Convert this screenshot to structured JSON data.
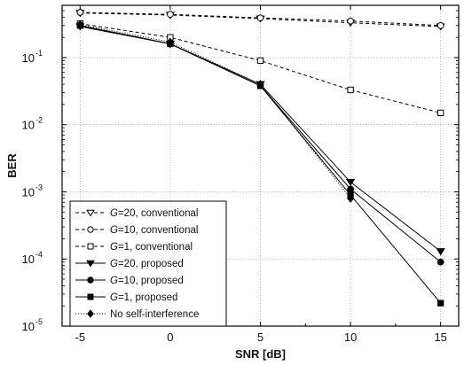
{
  "chart_data": {
    "type": "line",
    "title": "",
    "xlabel": "SNR [dB]",
    "ylabel": "BER",
    "xscale": "linear",
    "yscale": "log",
    "xlim": [
      -6,
      16
    ],
    "ylim": [
      1e-05,
      0.6
    ],
    "x": [
      -5,
      0,
      5,
      10,
      15
    ],
    "x_ticks": [
      {
        "value": -5,
        "label": "-5"
      },
      {
        "value": 0,
        "label": "0"
      },
      {
        "value": 5,
        "label": "5"
      },
      {
        "value": 10,
        "label": "10"
      },
      {
        "value": 15,
        "label": "15"
      }
    ],
    "y_ticks": [
      {
        "value": 0.1,
        "base": "10",
        "exp": "-1"
      },
      {
        "value": 0.01,
        "base": "10",
        "exp": "-2"
      },
      {
        "value": 0.001,
        "base": "10",
        "exp": "-3"
      },
      {
        "value": 0.0001,
        "base": "10",
        "exp": "-4"
      },
      {
        "value": 1e-05,
        "base": "10",
        "exp": "-5"
      }
    ],
    "grid": true,
    "legend_position": "bottom-left",
    "series": [
      {
        "name": "G=20, conventional",
        "legend_g": "G",
        "legend_rest": "=20, conventional",
        "values": [
          0.46,
          0.43,
          0.38,
          0.33,
          0.29
        ],
        "marker": "triangle-down",
        "filled": false,
        "dash": true
      },
      {
        "name": "G=10, conventional",
        "legend_g": "G",
        "legend_rest": "=10, conventional",
        "values": [
          0.47,
          0.44,
          0.39,
          0.35,
          0.3
        ],
        "marker": "circle",
        "filled": false,
        "dash": true
      },
      {
        "name": "G=1, conventional",
        "legend_g": "G",
        "legend_rest": "=1,   conventional",
        "values": [
          0.32,
          0.2,
          0.09,
          0.033,
          0.015
        ],
        "marker": "square",
        "filled": false,
        "dash": true
      },
      {
        "name": "G=20, proposed",
        "legend_g": "G",
        "legend_rest": "=20, proposed",
        "values": [
          0.29,
          0.16,
          0.04,
          0.0014,
          0.00013
        ],
        "marker": "triangle-down",
        "filled": true,
        "dash": false
      },
      {
        "name": "G=10, proposed",
        "legend_g": "G",
        "legend_rest": "=10, proposed",
        "values": [
          0.3,
          0.16,
          0.038,
          0.0011,
          9e-05
        ],
        "marker": "circle",
        "filled": true,
        "dash": false
      },
      {
        "name": "G=1, proposed",
        "legend_g": "G",
        "legend_rest": "=1,   proposed",
        "values": [
          0.3,
          0.16,
          0.038,
          0.0009,
          2.2e-05
        ],
        "marker": "square",
        "filled": true,
        "dash": false
      },
      {
        "name": "No self-interference",
        "legend_g": "",
        "legend_rest": "No self-interference",
        "values": [
          0.31,
          0.17,
          0.04,
          0.0008,
          null
        ],
        "marker": "diamond",
        "filled": true,
        "dash": false,
        "dotted": true
      }
    ]
  }
}
